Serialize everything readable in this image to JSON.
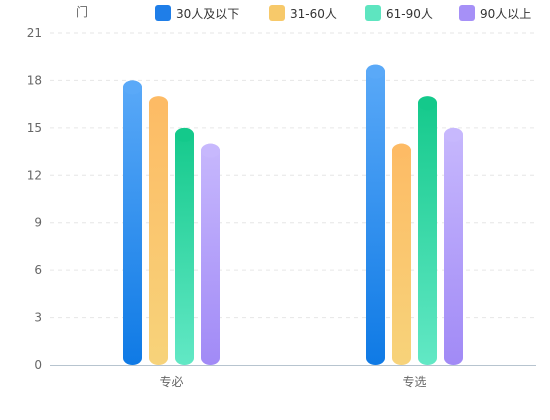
{
  "chart_data": {
    "type": "bar",
    "unit_label": "门",
    "categories": [
      "专必",
      "专选"
    ],
    "series": [
      {
        "name": "30人及以下",
        "values": [
          18,
          19
        ],
        "color_top": "#5aa9f8",
        "color_bottom": "#0f7ae5"
      },
      {
        "name": "31-60人",
        "values": [
          17,
          14
        ],
        "color_top": "#fdbb65",
        "color_bottom": "#f7d37a"
      },
      {
        "name": "61-90人",
        "values": [
          15,
          17
        ],
        "color_top": "#14c98b",
        "color_bottom": "#62e8c5"
      },
      {
        "name": "90人以上",
        "values": [
          14,
          15
        ],
        "color_top": "#c7b8fd",
        "color_bottom": "#a18af6"
      }
    ],
    "legend_colors": [
      "#1f7ee8",
      "#f7c96a",
      "#5ee5c0",
      "#a690f7"
    ],
    "y_ticks": [
      0,
      3,
      6,
      9,
      12,
      15,
      18,
      21
    ],
    "ylim": [
      0,
      21
    ],
    "grid": true,
    "legend_position": "top"
  }
}
